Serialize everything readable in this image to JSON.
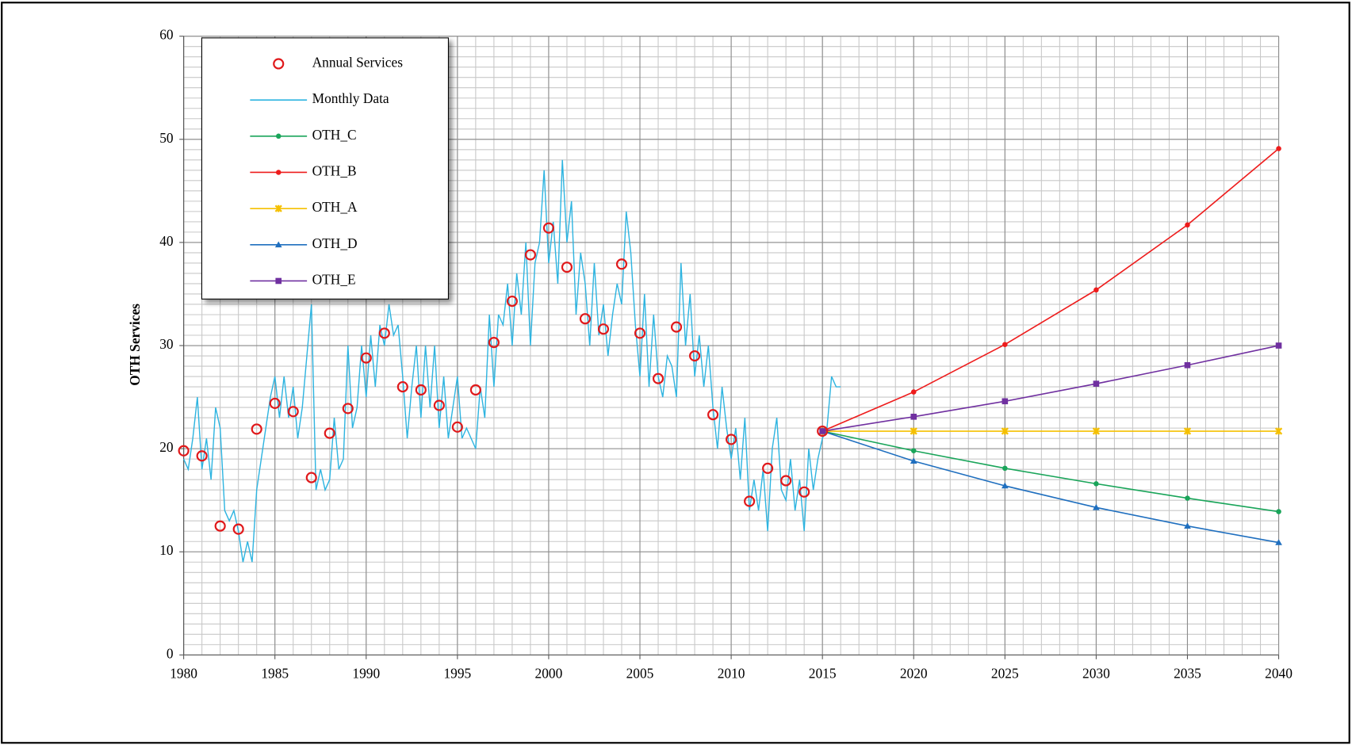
{
  "chart_data": {
    "type": "line",
    "ylabel": "OTH Services",
    "xlim": [
      1980,
      2040
    ],
    "ylim": [
      0,
      60
    ],
    "xticks": [
      1980,
      1985,
      1990,
      1995,
      2000,
      2005,
      2010,
      2015,
      2020,
      2025,
      2030,
      2035,
      2040
    ],
    "yticks": [
      0,
      10,
      20,
      30,
      40,
      50,
      60
    ],
    "grid": true,
    "minor_grid": {
      "x": 1,
      "y": 1
    },
    "legend": "upper left",
    "series": [
      {
        "name": "Annual Services",
        "color": "#e0191b",
        "marker": "open-circle",
        "line": false,
        "x": [
          1980,
          1981,
          1982,
          1983,
          1984,
          1985,
          1986,
          1987,
          1988,
          1989,
          1990,
          1991,
          1992,
          1993,
          1994,
          1995,
          1996,
          1997,
          1998,
          1999,
          2000,
          2001,
          2002,
          2003,
          2004,
          2005,
          2006,
          2007,
          2008,
          2009,
          2010,
          2011,
          2012,
          2013,
          2014,
          2015
        ],
        "values": [
          19.8,
          19.3,
          12.5,
          12.2,
          21.9,
          24.4,
          23.6,
          17.2,
          21.5,
          23.9,
          28.8,
          31.2,
          26.0,
          25.7,
          24.2,
          22.1,
          25.7,
          30.3,
          34.3,
          38.8,
          41.4,
          37.6,
          32.6,
          31.6,
          37.9,
          31.2,
          26.8,
          31.8,
          29.0,
          23.3,
          20.9,
          14.9,
          18.1,
          16.9,
          15.8,
          21.7
        ]
      },
      {
        "name": "Monthly Data",
        "color": "#2eb4e0",
        "marker": "none",
        "line": true,
        "x": [
          1980,
          1980.25,
          1980.5,
          1980.75,
          1981,
          1981.25,
          1981.5,
          1981.75,
          1982,
          1982.25,
          1982.5,
          1982.75,
          1983,
          1983.25,
          1983.5,
          1983.75,
          1984,
          1984.25,
          1984.5,
          1984.75,
          1985,
          1985.25,
          1985.5,
          1985.75,
          1986,
          1986.25,
          1986.5,
          1986.75,
          1987,
          1987.25,
          1987.5,
          1987.75,
          1988,
          1988.25,
          1988.5,
          1988.75,
          1989,
          1989.25,
          1989.5,
          1989.75,
          1990,
          1990.25,
          1990.5,
          1990.75,
          1991,
          1991.25,
          1991.5,
          1991.75,
          1992,
          1992.25,
          1992.5,
          1992.75,
          1993,
          1993.25,
          1993.5,
          1993.75,
          1994,
          1994.25,
          1994.5,
          1994.75,
          1995,
          1995.25,
          1995.5,
          1995.75,
          1996,
          1996.25,
          1996.5,
          1996.75,
          1997,
          1997.25,
          1997.5,
          1997.75,
          1998,
          1998.25,
          1998.5,
          1998.75,
          1999,
          1999.25,
          1999.5,
          1999.75,
          2000,
          2000.25,
          2000.5,
          2000.75,
          2001,
          2001.25,
          2001.5,
          2001.75,
          2002,
          2002.25,
          2002.5,
          2002.75,
          2003,
          2003.25,
          2003.5,
          2003.75,
          2004,
          2004.25,
          2004.5,
          2004.75,
          2005,
          2005.25,
          2005.5,
          2005.75,
          2006,
          2006.25,
          2006.5,
          2006.75,
          2007,
          2007.25,
          2007.5,
          2007.75,
          2008,
          2008.25,
          2008.5,
          2008.75,
          2009,
          2009.25,
          2009.5,
          2009.75,
          2010,
          2010.25,
          2010.5,
          2010.75,
          2011,
          2011.25,
          2011.5,
          2011.75,
          2012,
          2012.25,
          2012.5,
          2012.75,
          2013,
          2013.25,
          2013.5,
          2013.75,
          2014,
          2014.25,
          2014.5,
          2014.75,
          2015,
          2015.25,
          2015.5,
          2015.75,
          2016
        ],
        "values": [
          19,
          18,
          21,
          25,
          18,
          21,
          17,
          24,
          22,
          14,
          13,
          14,
          12,
          9,
          11,
          9,
          16,
          19,
          22,
          25,
          27,
          23,
          27,
          23,
          26,
          21,
          24,
          29,
          34,
          16,
          18,
          16,
          17,
          23,
          18,
          19,
          30,
          22,
          24,
          30,
          25,
          31,
          26,
          32,
          30,
          34,
          31,
          32,
          27,
          21,
          26,
          30,
          23,
          30,
          24,
          30,
          22,
          27,
          21,
          24,
          27,
          21,
          22,
          21,
          20,
          26,
          23,
          33,
          26,
          33,
          32,
          36,
          30,
          37,
          33,
          40,
          30,
          38,
          40,
          47,
          38,
          42,
          36,
          48,
          40,
          44,
          33,
          39,
          36,
          30,
          38,
          31,
          34,
          29,
          33,
          36,
          34,
          43,
          39,
          32,
          27,
          35,
          26,
          33,
          27,
          25,
          29,
          28,
          25,
          38,
          30,
          35,
          27,
          31,
          26,
          30,
          24,
          20,
          26,
          22,
          19,
          22,
          17,
          23,
          14,
          17,
          14,
          18,
          12,
          20,
          23,
          16,
          15,
          19,
          14,
          17,
          12,
          20,
          16,
          19,
          21,
          22,
          27,
          26,
          26
        ]
      },
      {
        "name": "OTH_C",
        "color": "#1aa55a",
        "marker": "dot",
        "line": true,
        "x": [
          2015,
          2020,
          2025,
          2030,
          2035,
          2040
        ],
        "values": [
          21.7,
          19.8,
          18.1,
          16.6,
          15.2,
          13.9
        ]
      },
      {
        "name": "OTH_B",
        "color": "#ee1c1c",
        "marker": "dot",
        "line": true,
        "x": [
          2015,
          2020,
          2025,
          2030,
          2035,
          2040
        ],
        "values": [
          21.7,
          25.5,
          30.1,
          35.4,
          41.7,
          49.1
        ]
      },
      {
        "name": "OTH_A",
        "color": "#f5c000",
        "marker": "cross",
        "line": true,
        "x": [
          2015,
          2020,
          2025,
          2030,
          2035,
          2040
        ],
        "values": [
          21.7,
          21.7,
          21.7,
          21.7,
          21.7,
          21.7
        ]
      },
      {
        "name": "OTH_D",
        "color": "#1f6fbf",
        "marker": "triangle",
        "line": true,
        "x": [
          2015,
          2020,
          2025,
          2030,
          2035,
          2040
        ],
        "values": [
          21.7,
          18.8,
          16.4,
          14.3,
          12.5,
          10.9
        ]
      },
      {
        "name": "OTH_E",
        "color": "#7030a0",
        "marker": "square",
        "line": true,
        "x": [
          2015,
          2020,
          2025,
          2030,
          2035,
          2040
        ],
        "values": [
          21.7,
          23.1,
          24.6,
          26.3,
          28.1,
          30.0
        ]
      }
    ]
  }
}
